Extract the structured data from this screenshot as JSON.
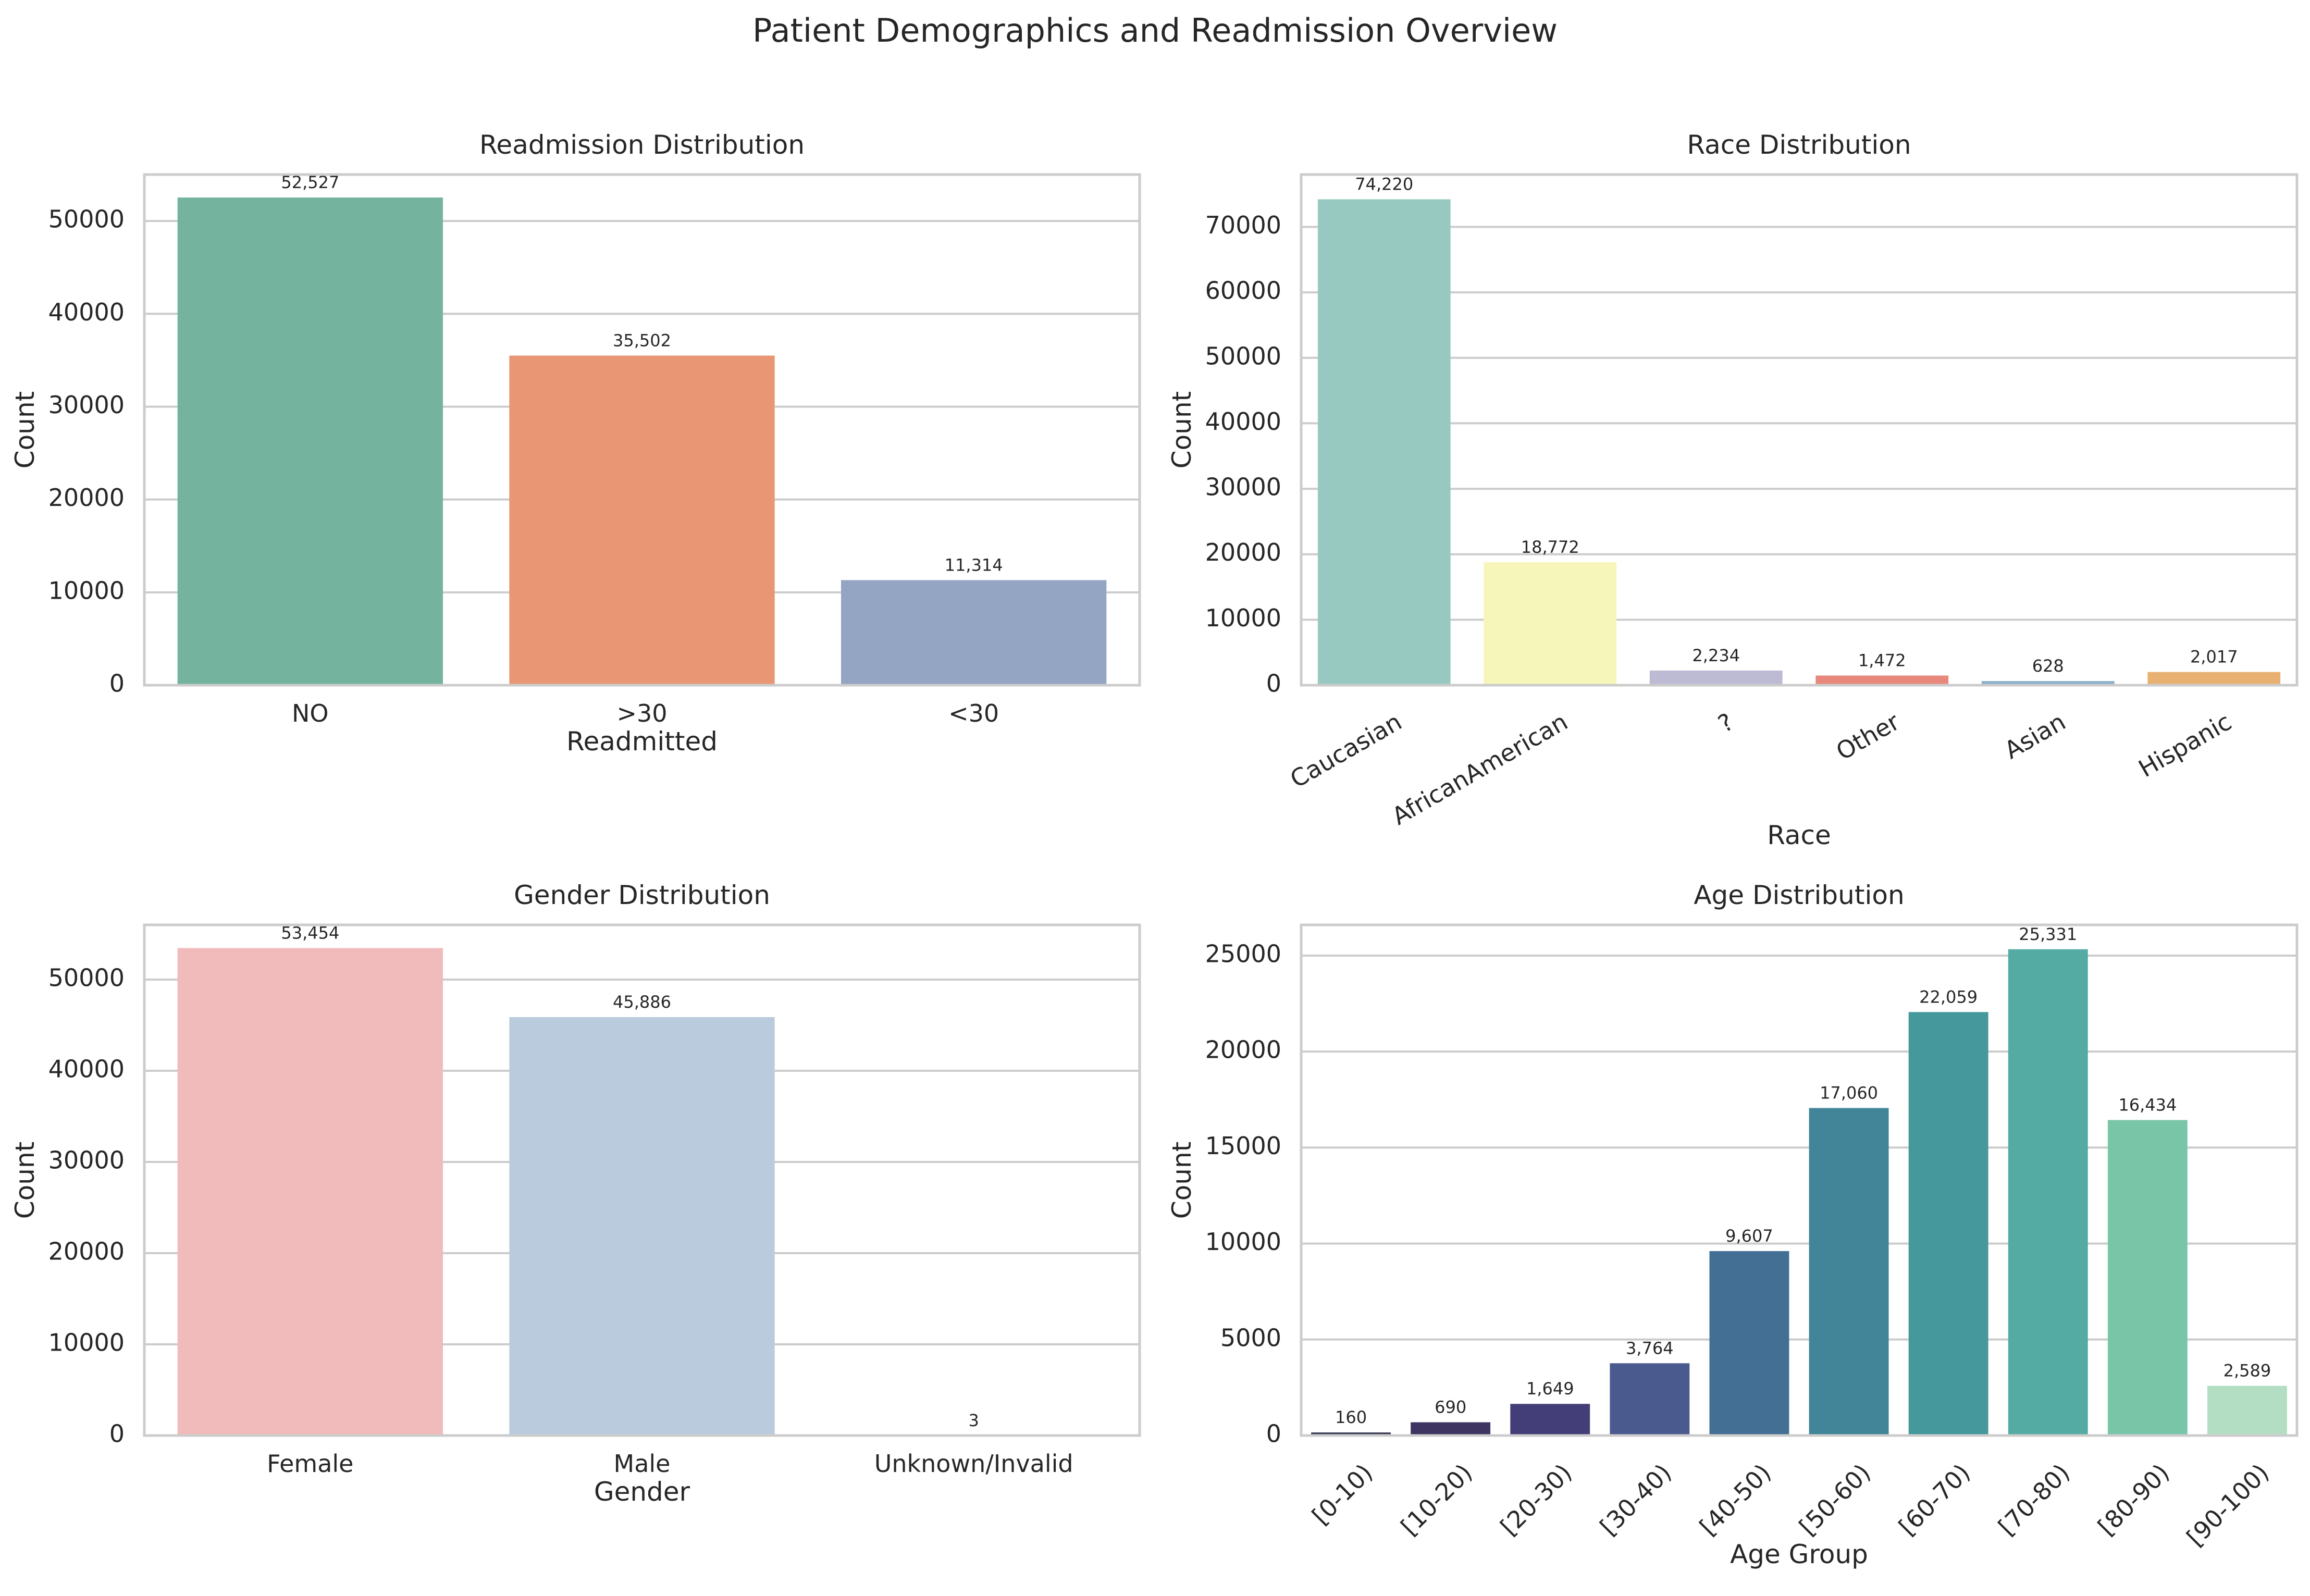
{
  "figure": {
    "title": "Patient Demographics and Readmission Overview"
  },
  "chart_data": [
    {
      "type": "bar",
      "title": "Readmission Distribution",
      "xlabel": "Readmitted",
      "ylabel": "Count",
      "categories": [
        "NO",
        ">30",
        "<30"
      ],
      "values": [
        52527,
        35502,
        11314
      ],
      "value_labels": [
        "52,527",
        "35,502",
        "11,314"
      ],
      "colors": [
        "#74b49f",
        "#e89673",
        "#94a4c3"
      ],
      "ylim": [
        0,
        55000
      ],
      "yticks": [
        0,
        10000,
        20000,
        30000,
        40000,
        50000
      ],
      "grid": true,
      "xtick_rotation": 0
    },
    {
      "type": "bar",
      "title": "Race Distribution",
      "xlabel": "Race",
      "ylabel": "Count",
      "categories": [
        "Caucasian",
        "AfricanAmerican",
        "?",
        "Other",
        "Asian",
        "Hispanic"
      ],
      "values": [
        74220,
        18772,
        2234,
        1472,
        628,
        2017
      ],
      "value_labels": [
        "74,220",
        "18,772",
        "2,234",
        "1,472",
        "628",
        "2,017"
      ],
      "colors": [
        "#98c9c1",
        "#f6f5ba",
        "#bdbad3",
        "#e8887c",
        "#8bb0c9",
        "#e8b071"
      ],
      "ylim": [
        0,
        78000
      ],
      "yticks": [
        0,
        10000,
        20000,
        30000,
        40000,
        50000,
        60000,
        70000
      ],
      "grid": true,
      "xtick_rotation": -30
    },
    {
      "type": "bar",
      "title": "Gender Distribution",
      "xlabel": "Gender",
      "ylabel": "Count",
      "categories": [
        "Female",
        "Male",
        "Unknown/Invalid"
      ],
      "values": [
        53454,
        45886,
        3
      ],
      "value_labels": [
        "53,454",
        "45,886",
        "3"
      ],
      "colors": [
        "#f0bbba",
        "#b9cbdc",
        "#cfe3c8"
      ],
      "ylim": [
        0,
        56000
      ],
      "yticks": [
        0,
        10000,
        20000,
        30000,
        40000,
        50000
      ],
      "grid": true,
      "xtick_rotation": 0
    },
    {
      "type": "bar",
      "title": "Age Distribution",
      "xlabel": "Age Group",
      "ylabel": "Count",
      "categories": [
        "[0-10)",
        "[10-20)",
        "[20-30)",
        "[30-40)",
        "[40-50)",
        "[50-60)",
        "[60-70)",
        "[70-80)",
        "[80-90)",
        "[90-100)"
      ],
      "values": [
        160,
        690,
        1649,
        3764,
        9607,
        17060,
        22059,
        25331,
        16434,
        2589
      ],
      "value_labels": [
        "160",
        "690",
        "1,649",
        "3,764",
        "9,607",
        "17,060",
        "22,059",
        "25,331",
        "16,434",
        "2,589"
      ],
      "colors": [
        "#3c3b55",
        "#3e3560",
        "#433e77",
        "#4a5a8f",
        "#436f95",
        "#428599",
        "#45989c",
        "#53aba3",
        "#79c5a8",
        "#b4dec4"
      ],
      "ylim": [
        0,
        26600
      ],
      "yticks": [
        0,
        5000,
        10000,
        15000,
        20000,
        25000
      ],
      "grid": true,
      "xtick_rotation": -45
    }
  ]
}
